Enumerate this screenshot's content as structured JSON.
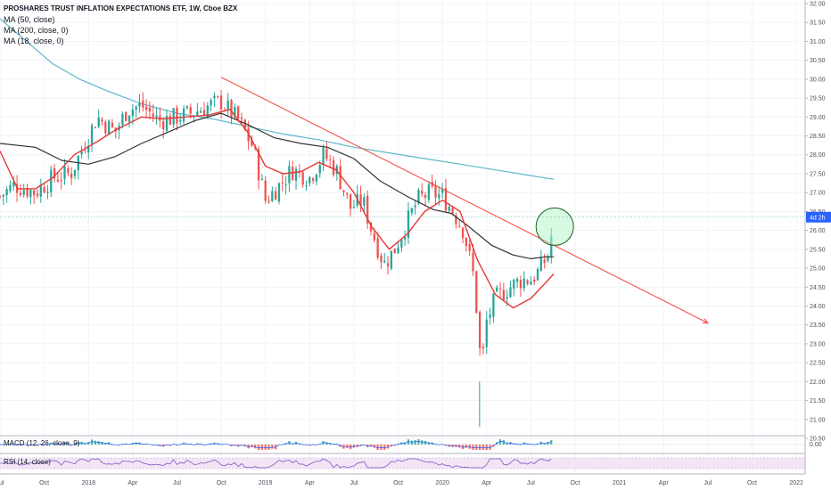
{
  "header": {
    "ticker": "PROSHARES TRUST INFLATION EXPECTATIONS ETF, 1W, Cboe BZX",
    "ma50": "MA (50, close)",
    "ma200": "MA (200, close, 0)",
    "ma18": "MA (18, close, 0)"
  },
  "macd_label": "MACD (12, 26, close, 9)",
  "rsi_label": "RSI (14, close)",
  "current_price_label": "4d 2h",
  "macd_zero_label": "0.00",
  "colors": {
    "up": "#26a69a",
    "down": "#ef5350",
    "ma18": "#e53935",
    "ma50": "#333333",
    "ma200": "#5db7c9",
    "trendline": "#f44336",
    "circle_fill": "#b9f6ca",
    "circle_stroke": "#1b5e20",
    "price_label_bg": "#2962ff",
    "rsi_line": "#7e57c2",
    "rsi_band": "#f3e5f5"
  },
  "chart_data": {
    "type": "candlestick",
    "ylim": [
      20.5,
      32.0
    ],
    "yticks": [
      20.5,
      21.0,
      21.5,
      22.0,
      22.5,
      23.0,
      23.5,
      24.0,
      24.5,
      25.0,
      25.5,
      26.0,
      26.5,
      27.0,
      27.5,
      28.0,
      28.5,
      29.0,
      29.5,
      30.0,
      30.5,
      31.0,
      31.5,
      32.0
    ],
    "ytick_labels": [
      "20.50",
      "21.00",
      "21.50",
      "22.00",
      "22.50",
      "23.00",
      "23.50",
      "24.00",
      "24.50",
      "25.00",
      "25.50",
      "26.00",
      "26.50",
      "27.00",
      "27.50",
      "28.00",
      "28.50",
      "29.00",
      "29.50",
      "30.00",
      "30.50",
      "31.00",
      "31.50",
      "32.00"
    ],
    "xticks": [
      "Jul",
      "Oct",
      "2018",
      "Apr",
      "Jul",
      "Oct",
      "2019",
      "Apr",
      "Jul",
      "Oct",
      "2020",
      "Apr",
      "Jul",
      "Oct",
      "2021",
      "Apr",
      "Jul",
      "Oct",
      "2022"
    ],
    "xtick_positions": [
      2017.5,
      2017.75,
      2018.0,
      2018.25,
      2018.5,
      2018.75,
      2019.0,
      2019.25,
      2019.5,
      2019.75,
      2020.0,
      2020.25,
      2020.5,
      2020.75,
      2021.0,
      2021.25,
      2021.5,
      2021.75,
      2022.0
    ],
    "xlim": [
      2017.5,
      2022.05
    ],
    "current_price": 26.35,
    "trendline": [
      [
        2018.75,
        30.05
      ],
      [
        2021.5,
        23.55
      ]
    ],
    "circle": {
      "x": 2020.625,
      "y": 26.1
    },
    "anchors": [
      [
        2017.5,
        26.9
      ],
      [
        2017.58,
        27.2
      ],
      [
        2017.7,
        27.0
      ],
      [
        2017.8,
        27.4
      ],
      [
        2017.9,
        27.5
      ],
      [
        2017.97,
        28.2
      ],
      [
        2018.05,
        29.0
      ],
      [
        2018.15,
        28.6
      ],
      [
        2018.22,
        29.2
      ],
      [
        2018.3,
        29.3
      ],
      [
        2018.4,
        28.9
      ],
      [
        2018.5,
        29.0
      ],
      [
        2018.58,
        29.1
      ],
      [
        2018.68,
        29.3
      ],
      [
        2018.75,
        29.4
      ],
      [
        2018.85,
        28.9
      ],
      [
        2018.93,
        28.2
      ],
      [
        2019.0,
        26.8
      ],
      [
        2019.08,
        27.2
      ],
      [
        2019.15,
        27.6
      ],
      [
        2019.25,
        27.4
      ],
      [
        2019.33,
        28.0
      ],
      [
        2019.4,
        27.6
      ],
      [
        2019.48,
        26.6
      ],
      [
        2019.55,
        26.8
      ],
      [
        2019.6,
        26.0
      ],
      [
        2019.67,
        25.1
      ],
      [
        2019.73,
        25.5
      ],
      [
        2019.8,
        26.2
      ],
      [
        2019.86,
        26.8
      ],
      [
        2019.93,
        27.0
      ],
      [
        2020.0,
        26.9
      ],
      [
        2020.06,
        26.5
      ],
      [
        2020.12,
        26.0
      ],
      [
        2020.18,
        24.7
      ],
      [
        2020.2,
        23.5
      ],
      [
        2020.22,
        22.3
      ],
      [
        2020.25,
        23.6
      ],
      [
        2020.3,
        24.2
      ],
      [
        2020.38,
        24.5
      ],
      [
        2020.45,
        24.7
      ],
      [
        2020.5,
        24.7
      ],
      [
        2020.55,
        24.95
      ],
      [
        2020.6,
        25.4
      ],
      [
        2020.63,
        26.3
      ]
    ],
    "ma18": [
      [
        2017.5,
        28.1
      ],
      [
        2017.6,
        27.1
      ],
      [
        2017.7,
        27.1
      ],
      [
        2017.8,
        27.4
      ],
      [
        2017.92,
        28.0
      ],
      [
        2018.05,
        28.35
      ],
      [
        2018.15,
        28.65
      ],
      [
        2018.3,
        29.0
      ],
      [
        2018.42,
        28.95
      ],
      [
        2018.55,
        29.0
      ],
      [
        2018.68,
        29.05
      ],
      [
        2018.8,
        29.2
      ],
      [
        2018.9,
        28.6
      ],
      [
        2019.0,
        27.7
      ],
      [
        2019.1,
        27.5
      ],
      [
        2019.2,
        27.55
      ],
      [
        2019.3,
        27.8
      ],
      [
        2019.4,
        27.6
      ],
      [
        2019.5,
        27.0
      ],
      [
        2019.6,
        26.1
      ],
      [
        2019.7,
        25.5
      ],
      [
        2019.8,
        25.9
      ],
      [
        2019.9,
        26.5
      ],
      [
        2020.0,
        26.8
      ],
      [
        2020.1,
        26.5
      ],
      [
        2020.2,
        25.2
      ],
      [
        2020.3,
        24.3
      ],
      [
        2020.4,
        23.95
      ],
      [
        2020.5,
        24.2
      ],
      [
        2020.58,
        24.6
      ],
      [
        2020.63,
        24.85
      ]
    ],
    "ma50": [
      [
        2017.5,
        28.3
      ],
      [
        2017.7,
        28.2
      ],
      [
        2017.85,
        27.85
      ],
      [
        2018.0,
        27.75
      ],
      [
        2018.15,
        27.95
      ],
      [
        2018.3,
        28.3
      ],
      [
        2018.45,
        28.6
      ],
      [
        2018.6,
        28.9
      ],
      [
        2018.75,
        29.1
      ],
      [
        2018.9,
        28.8
      ],
      [
        2019.05,
        28.45
      ],
      [
        2019.2,
        28.3
      ],
      [
        2019.35,
        28.2
      ],
      [
        2019.5,
        27.9
      ],
      [
        2019.65,
        27.3
      ],
      [
        2019.8,
        26.9
      ],
      [
        2019.95,
        26.55
      ],
      [
        2020.05,
        26.45
      ],
      [
        2020.15,
        26.1
      ],
      [
        2020.28,
        25.6
      ],
      [
        2020.4,
        25.35
      ],
      [
        2020.5,
        25.25
      ],
      [
        2020.58,
        25.3
      ],
      [
        2020.63,
        25.3
      ]
    ],
    "ma200": [
      [
        2017.5,
        31.6
      ],
      [
        2017.65,
        31.0
      ],
      [
        2017.8,
        30.4
      ],
      [
        2017.95,
        30.0
      ],
      [
        2018.1,
        29.7
      ],
      [
        2018.3,
        29.35
      ],
      [
        2018.5,
        29.1
      ],
      [
        2018.7,
        28.95
      ],
      [
        2018.9,
        28.75
      ],
      [
        2019.1,
        28.55
      ],
      [
        2019.3,
        28.4
      ],
      [
        2019.5,
        28.2
      ],
      [
        2019.7,
        28.05
      ],
      [
        2019.9,
        27.9
      ],
      [
        2020.1,
        27.75
      ],
      [
        2020.3,
        27.6
      ],
      [
        2020.5,
        27.45
      ],
      [
        2020.63,
        27.35
      ]
    ]
  }
}
